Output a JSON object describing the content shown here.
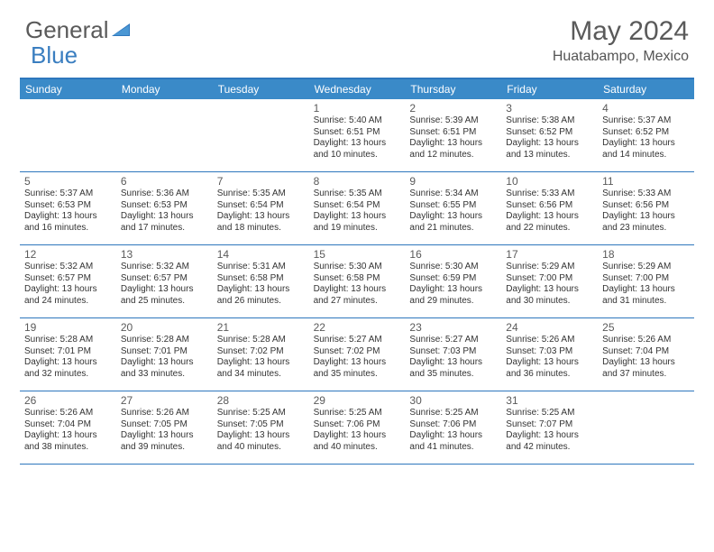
{
  "logo": {
    "text1": "General",
    "text2": "Blue"
  },
  "title": "May 2024",
  "location": "Huatabampo, Mexico",
  "colors": {
    "header_bg": "#3a8ac8",
    "header_text": "#ffffff",
    "border": "#2e77bd",
    "logo_gray": "#5a5a5a",
    "logo_blue": "#3a7ec0",
    "body_text": "#333333"
  },
  "dayNames": [
    "Sunday",
    "Monday",
    "Tuesday",
    "Wednesday",
    "Thursday",
    "Friday",
    "Saturday"
  ],
  "weeks": [
    [
      {
        "n": "",
        "l": []
      },
      {
        "n": "",
        "l": []
      },
      {
        "n": "",
        "l": []
      },
      {
        "n": "1",
        "l": [
          "Sunrise: 5:40 AM",
          "Sunset: 6:51 PM",
          "Daylight: 13 hours",
          "and 10 minutes."
        ]
      },
      {
        "n": "2",
        "l": [
          "Sunrise: 5:39 AM",
          "Sunset: 6:51 PM",
          "Daylight: 13 hours",
          "and 12 minutes."
        ]
      },
      {
        "n": "3",
        "l": [
          "Sunrise: 5:38 AM",
          "Sunset: 6:52 PM",
          "Daylight: 13 hours",
          "and 13 minutes."
        ]
      },
      {
        "n": "4",
        "l": [
          "Sunrise: 5:37 AM",
          "Sunset: 6:52 PM",
          "Daylight: 13 hours",
          "and 14 minutes."
        ]
      }
    ],
    [
      {
        "n": "5",
        "l": [
          "Sunrise: 5:37 AM",
          "Sunset: 6:53 PM",
          "Daylight: 13 hours",
          "and 16 minutes."
        ]
      },
      {
        "n": "6",
        "l": [
          "Sunrise: 5:36 AM",
          "Sunset: 6:53 PM",
          "Daylight: 13 hours",
          "and 17 minutes."
        ]
      },
      {
        "n": "7",
        "l": [
          "Sunrise: 5:35 AM",
          "Sunset: 6:54 PM",
          "Daylight: 13 hours",
          "and 18 minutes."
        ]
      },
      {
        "n": "8",
        "l": [
          "Sunrise: 5:35 AM",
          "Sunset: 6:54 PM",
          "Daylight: 13 hours",
          "and 19 minutes."
        ]
      },
      {
        "n": "9",
        "l": [
          "Sunrise: 5:34 AM",
          "Sunset: 6:55 PM",
          "Daylight: 13 hours",
          "and 21 minutes."
        ]
      },
      {
        "n": "10",
        "l": [
          "Sunrise: 5:33 AM",
          "Sunset: 6:56 PM",
          "Daylight: 13 hours",
          "and 22 minutes."
        ]
      },
      {
        "n": "11",
        "l": [
          "Sunrise: 5:33 AM",
          "Sunset: 6:56 PM",
          "Daylight: 13 hours",
          "and 23 minutes."
        ]
      }
    ],
    [
      {
        "n": "12",
        "l": [
          "Sunrise: 5:32 AM",
          "Sunset: 6:57 PM",
          "Daylight: 13 hours",
          "and 24 minutes."
        ]
      },
      {
        "n": "13",
        "l": [
          "Sunrise: 5:32 AM",
          "Sunset: 6:57 PM",
          "Daylight: 13 hours",
          "and 25 minutes."
        ]
      },
      {
        "n": "14",
        "l": [
          "Sunrise: 5:31 AM",
          "Sunset: 6:58 PM",
          "Daylight: 13 hours",
          "and 26 minutes."
        ]
      },
      {
        "n": "15",
        "l": [
          "Sunrise: 5:30 AM",
          "Sunset: 6:58 PM",
          "Daylight: 13 hours",
          "and 27 minutes."
        ]
      },
      {
        "n": "16",
        "l": [
          "Sunrise: 5:30 AM",
          "Sunset: 6:59 PM",
          "Daylight: 13 hours",
          "and 29 minutes."
        ]
      },
      {
        "n": "17",
        "l": [
          "Sunrise: 5:29 AM",
          "Sunset: 7:00 PM",
          "Daylight: 13 hours",
          "and 30 minutes."
        ]
      },
      {
        "n": "18",
        "l": [
          "Sunrise: 5:29 AM",
          "Sunset: 7:00 PM",
          "Daylight: 13 hours",
          "and 31 minutes."
        ]
      }
    ],
    [
      {
        "n": "19",
        "l": [
          "Sunrise: 5:28 AM",
          "Sunset: 7:01 PM",
          "Daylight: 13 hours",
          "and 32 minutes."
        ]
      },
      {
        "n": "20",
        "l": [
          "Sunrise: 5:28 AM",
          "Sunset: 7:01 PM",
          "Daylight: 13 hours",
          "and 33 minutes."
        ]
      },
      {
        "n": "21",
        "l": [
          "Sunrise: 5:28 AM",
          "Sunset: 7:02 PM",
          "Daylight: 13 hours",
          "and 34 minutes."
        ]
      },
      {
        "n": "22",
        "l": [
          "Sunrise: 5:27 AM",
          "Sunset: 7:02 PM",
          "Daylight: 13 hours",
          "and 35 minutes."
        ]
      },
      {
        "n": "23",
        "l": [
          "Sunrise: 5:27 AM",
          "Sunset: 7:03 PM",
          "Daylight: 13 hours",
          "and 35 minutes."
        ]
      },
      {
        "n": "24",
        "l": [
          "Sunrise: 5:26 AM",
          "Sunset: 7:03 PM",
          "Daylight: 13 hours",
          "and 36 minutes."
        ]
      },
      {
        "n": "25",
        "l": [
          "Sunrise: 5:26 AM",
          "Sunset: 7:04 PM",
          "Daylight: 13 hours",
          "and 37 minutes."
        ]
      }
    ],
    [
      {
        "n": "26",
        "l": [
          "Sunrise: 5:26 AM",
          "Sunset: 7:04 PM",
          "Daylight: 13 hours",
          "and 38 minutes."
        ]
      },
      {
        "n": "27",
        "l": [
          "Sunrise: 5:26 AM",
          "Sunset: 7:05 PM",
          "Daylight: 13 hours",
          "and 39 minutes."
        ]
      },
      {
        "n": "28",
        "l": [
          "Sunrise: 5:25 AM",
          "Sunset: 7:05 PM",
          "Daylight: 13 hours",
          "and 40 minutes."
        ]
      },
      {
        "n": "29",
        "l": [
          "Sunrise: 5:25 AM",
          "Sunset: 7:06 PM",
          "Daylight: 13 hours",
          "and 40 minutes."
        ]
      },
      {
        "n": "30",
        "l": [
          "Sunrise: 5:25 AM",
          "Sunset: 7:06 PM",
          "Daylight: 13 hours",
          "and 41 minutes."
        ]
      },
      {
        "n": "31",
        "l": [
          "Sunrise: 5:25 AM",
          "Sunset: 7:07 PM",
          "Daylight: 13 hours",
          "and 42 minutes."
        ]
      },
      {
        "n": "",
        "l": []
      }
    ]
  ]
}
